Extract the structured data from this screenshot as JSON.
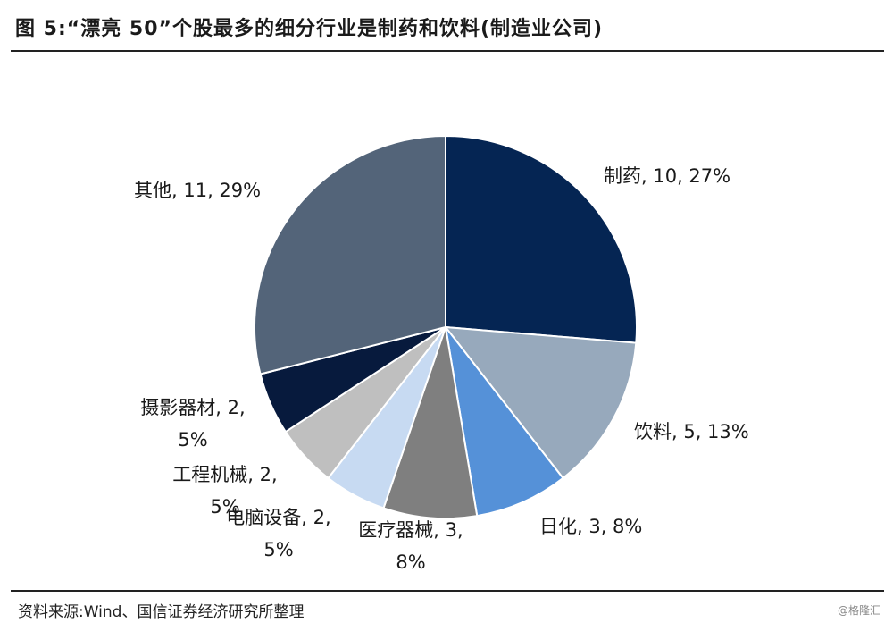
{
  "title": "图 5:“漂亮 50”个股最多的细分行业是制药和饮料(制造业公司)",
  "source": "资料来源:Wind、国信证券经济研究所整理",
  "watermark": "@格隆汇",
  "chart_data": {
    "type": "pie",
    "start_angle_deg": 0,
    "direction": "clockwise",
    "slices": [
      {
        "name": "制药",
        "value": 10,
        "percent": "27%",
        "color": "#052553",
        "label_lines": [
          "制药, 10, 27%"
        ]
      },
      {
        "name": "饮料",
        "value": 5,
        "percent": "13%",
        "color": "#97a9bc",
        "label_lines": [
          "饮料, 5, 13%"
        ]
      },
      {
        "name": "日化",
        "value": 3,
        "percent": "8%",
        "color": "#5591d8",
        "label_lines": [
          "日化, 3, 8%"
        ]
      },
      {
        "name": "医疗器械",
        "value": 3,
        "percent": "8%",
        "color": "#7f7f7f",
        "label_lines": [
          "医疗器械, 3,",
          "8%"
        ]
      },
      {
        "name": "电脑设备",
        "value": 2,
        "percent": "5%",
        "color": "#c7daf2",
        "label_lines": [
          "电脑设备, 2,",
          "5%"
        ]
      },
      {
        "name": "工程机械",
        "value": 2,
        "percent": "5%",
        "color": "#bfbfbf",
        "label_lines": [
          "工程机械, 2,",
          "5%"
        ]
      },
      {
        "name": "摄影器材",
        "value": 2,
        "percent": "5%",
        "color": "#071a3d",
        "label_lines": [
          "摄影器材, 2,",
          "5%"
        ]
      },
      {
        "name": "其他",
        "value": 11,
        "percent": "29%",
        "color": "#536479",
        "label_lines": [
          "其他, 11, 29%"
        ]
      }
    ]
  }
}
